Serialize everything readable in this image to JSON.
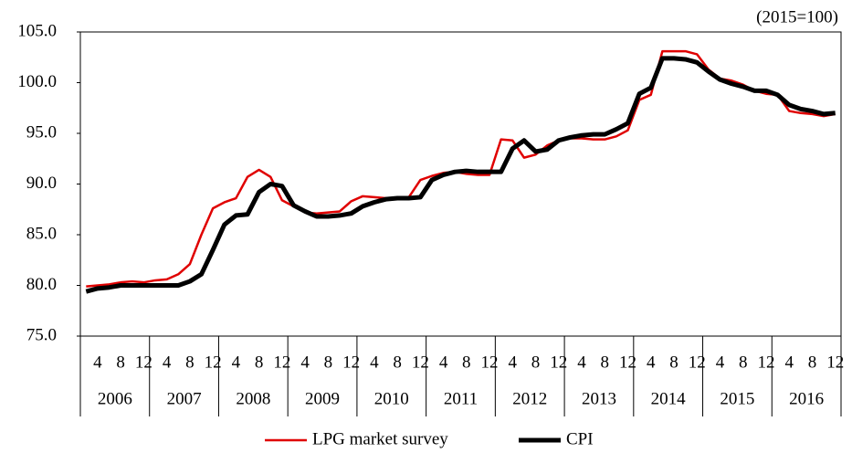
{
  "chart_data": {
    "type": "line",
    "note": "(2015=100)",
    "categories": [
      null,
      "4",
      null,
      "8",
      null,
      "12",
      null,
      "4",
      null,
      "8",
      null,
      "12",
      null,
      "4",
      null,
      "8",
      null,
      "12",
      null,
      "4",
      null,
      "8",
      null,
      "12",
      null,
      "4",
      null,
      "8",
      null,
      "12",
      null,
      "4",
      null,
      "8",
      null,
      "12",
      null,
      "4",
      null,
      "8",
      null,
      "12",
      null,
      "4",
      null,
      "8",
      null,
      "12",
      null,
      "4",
      null,
      "8",
      null,
      "12",
      null,
      "4",
      null,
      "8",
      null,
      "12",
      null,
      "4",
      null,
      "8",
      null,
      "12"
    ],
    "groups": [
      "2006",
      "2007",
      "2008",
      "2009",
      "2010",
      "2011",
      "2012",
      "2013",
      "2014",
      "2015",
      "2016"
    ],
    "series": [
      {
        "name": "LPG market survey",
        "color": "#e00000",
        "width": 2.5,
        "values": [
          79.9,
          80.0,
          80.1,
          80.3,
          80.4,
          80.3,
          80.5,
          80.6,
          81.1,
          82.1,
          85.0,
          87.6,
          88.2,
          88.6,
          90.7,
          91.4,
          90.7,
          88.4,
          87.8,
          87.2,
          87.1,
          87.2,
          87.3,
          88.3,
          88.8,
          88.7,
          88.6,
          88.6,
          88.7,
          90.4,
          90.8,
          91.1,
          91.2,
          91.0,
          90.9,
          90.9,
          94.4,
          94.3,
          92.6,
          92.9,
          93.8,
          94.3,
          94.5,
          94.5,
          94.4,
          94.4,
          94.7,
          95.3,
          98.3,
          98.8,
          103.1,
          103.1,
          103.1,
          102.8,
          101.3,
          100.4,
          100.2,
          99.8,
          99.2,
          98.9,
          98.8,
          97.2,
          97.0,
          96.9,
          96.7,
          96.9
        ]
      },
      {
        "name": "CPI",
        "color": "#000000",
        "width": 5,
        "values": [
          79.4,
          79.7,
          79.8,
          80.0,
          80.0,
          80.0,
          80.0,
          80.0,
          80.0,
          80.4,
          81.1,
          83.5,
          86.0,
          86.9,
          87.0,
          89.2,
          90.0,
          89.8,
          87.9,
          87.3,
          86.8,
          86.8,
          86.9,
          87.1,
          87.8,
          88.2,
          88.5,
          88.6,
          88.6,
          88.7,
          90.4,
          90.9,
          91.2,
          91.3,
          91.2,
          91.2,
          91.2,
          93.5,
          94.3,
          93.2,
          93.4,
          94.3,
          94.6,
          94.8,
          94.9,
          94.9,
          95.4,
          96.0,
          98.9,
          99.5,
          102.4,
          102.4,
          102.3,
          102.0,
          101.1,
          100.3,
          99.9,
          99.6,
          99.2,
          99.2,
          98.8,
          97.8,
          97.4,
          97.2,
          96.9,
          97.0
        ]
      }
    ],
    "ylim": [
      75,
      105
    ],
    "yticks": [
      {
        "value": 75,
        "label": "75.0"
      },
      {
        "value": 80,
        "label": "80.0"
      },
      {
        "value": 85,
        "label": "85.0"
      },
      {
        "value": 90,
        "label": "90.0"
      },
      {
        "value": 95,
        "label": "95.0"
      },
      {
        "value": 100,
        "label": "100.0"
      },
      {
        "value": 105,
        "label": "105.0"
      }
    ],
    "grid": false,
    "legend": "bottom"
  }
}
